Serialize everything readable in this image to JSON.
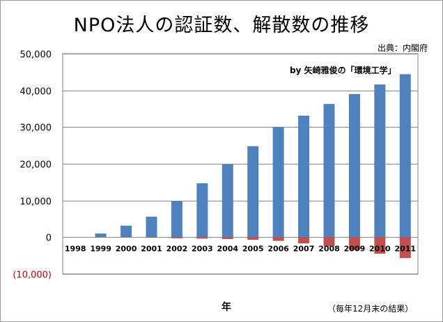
{
  "title": "NPO法人の認証数、解散数の推移",
  "source": "出典：内閣府",
  "credit": "by  矢崎雅俊の「環境工学」",
  "xlabel": "年",
  "note": "（毎年12月末の結果）",
  "colors": {
    "certified": "#4f81bd",
    "dissolved": "#c0504d",
    "grid": "#878787",
    "plot_bg": "#ffffff"
  },
  "chart_data": {
    "type": "bar",
    "title": "NPO法人の認証数、解散数の推移",
    "xlabel": "年",
    "ylabel": "",
    "categories": [
      "1998",
      "1999",
      "2000",
      "2001",
      "2002",
      "2003",
      "2004",
      "2005",
      "2006",
      "2007",
      "2008",
      "2009",
      "2010",
      "2011"
    ],
    "series": [
      {
        "values": [
          23,
          1010,
          3150,
          5600,
          9850,
          14700,
          19900,
          24800,
          30000,
          33100,
          36300,
          39000,
          41600,
          44400
        ]
      },
      {
        "values": [
          0,
          0,
          -40,
          -150,
          -300,
          -400,
          -500,
          -700,
          -1000,
          -1700,
          -2500,
          -3500,
          -4500,
          -5700
        ]
      }
    ],
    "ylim": [
      -10000,
      50000
    ],
    "yticks": [
      -10000,
      0,
      10000,
      20000,
      30000,
      40000,
      50000
    ],
    "ytick_labels": [
      "(10,000)",
      "0",
      "10,000",
      "20,000",
      "30,000",
      "40,000",
      "50,000"
    ],
    "grid": true,
    "stacked": true
  }
}
